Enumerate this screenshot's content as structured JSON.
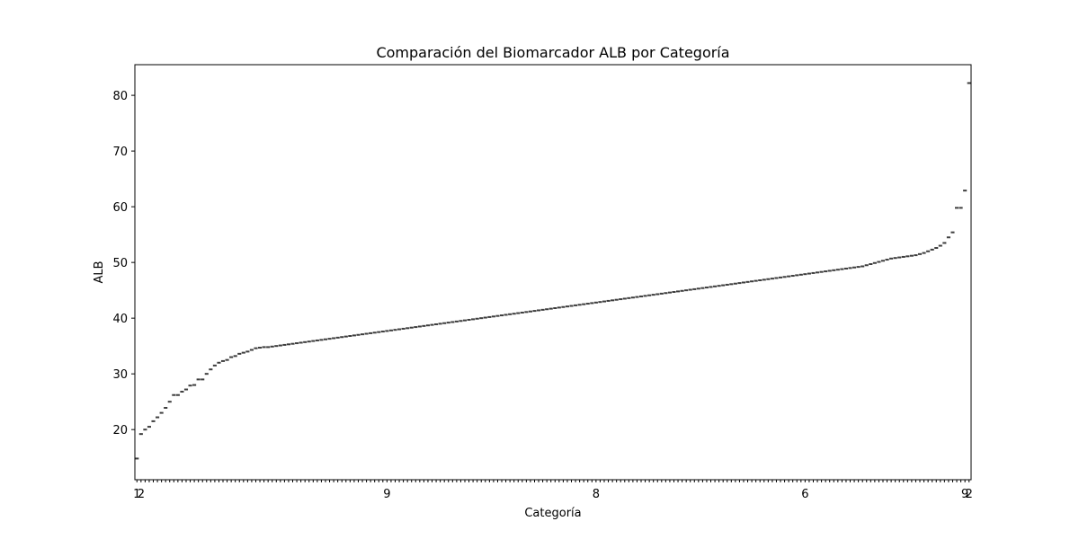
{
  "chart_data": {
    "type": "box",
    "title": "Comparación del Biomarcador ALB por Categoría",
    "xlabel": "Categoría",
    "ylabel": "ALB",
    "ylim": [
      11,
      85.5
    ],
    "yticks": [
      20,
      30,
      40,
      50,
      60,
      70,
      80
    ],
    "grid": false,
    "legend": "none",
    "mark_color": "#3d3d3d",
    "x_tick_labels_visible": [
      "1",
      "2",
      "9",
      "8",
      "6",
      "9",
      "2"
    ],
    "category_count": 220,
    "values": [
      14.8,
      19.2,
      20.0,
      20.5,
      21.5,
      22.2,
      23.0,
      23.9,
      25.0,
      26.2,
      26.2,
      26.8,
      27.2,
      27.9,
      28.0,
      29.0,
      29.0,
      30.0,
      30.8,
      31.5,
      32.0,
      32.3,
      32.5,
      33.0,
      33.2,
      33.6,
      33.8,
      34.0,
      34.3,
      34.6,
      34.7,
      34.8,
      34.8,
      34.9,
      35.0,
      35.1,
      35.2,
      35.3,
      35.4,
      35.5,
      35.6,
      35.7,
      35.8,
      35.9,
      36.0,
      36.1,
      36.2,
      36.3,
      36.4,
      36.5,
      36.6,
      36.7,
      36.8,
      36.9,
      37.0,
      37.1,
      37.2,
      37.3,
      37.4,
      37.5,
      37.6,
      37.7,
      37.8,
      37.9,
      38.0,
      38.1,
      38.2,
      38.3,
      38.4,
      38.5,
      38.6,
      38.7,
      38.8,
      38.9,
      39.0,
      39.1,
      39.2,
      39.3,
      39.4,
      39.5,
      39.6,
      39.7,
      39.8,
      39.9,
      40.0,
      40.1,
      40.2,
      40.3,
      40.4,
      40.5,
      40.6,
      40.7,
      40.8,
      40.9,
      41.0,
      41.1,
      41.2,
      41.3,
      41.4,
      41.5,
      41.6,
      41.7,
      41.8,
      41.9,
      42.0,
      42.1,
      42.2,
      42.3,
      42.4,
      42.5,
      42.6,
      42.7,
      42.8,
      42.9,
      43.0,
      43.1,
      43.2,
      43.3,
      43.4,
      43.5,
      43.6,
      43.7,
      43.8,
      43.9,
      44.0,
      44.1,
      44.2,
      44.3,
      44.4,
      44.5,
      44.6,
      44.7,
      44.8,
      44.9,
      45.0,
      45.1,
      45.2,
      45.3,
      45.4,
      45.5,
      45.6,
      45.7,
      45.8,
      45.9,
      46.0,
      46.1,
      46.2,
      46.3,
      46.4,
      46.5,
      46.6,
      46.7,
      46.8,
      46.9,
      47.0,
      47.1,
      47.2,
      47.3,
      47.4,
      47.5,
      47.6,
      47.7,
      47.8,
      47.9,
      48.0,
      48.1,
      48.2,
      48.3,
      48.4,
      48.5,
      48.6,
      48.7,
      48.8,
      48.9,
      49.0,
      49.1,
      49.2,
      49.3,
      49.5,
      49.7,
      49.9,
      50.1,
      50.3,
      50.5,
      50.7,
      50.8,
      50.9,
      51.0,
      51.1,
      51.2,
      51.3,
      51.5,
      51.7,
      52.0,
      52.3,
      52.6,
      53.0,
      53.5,
      54.5,
      55.4,
      59.8,
      59.8,
      62.9,
      82.2
    ]
  }
}
